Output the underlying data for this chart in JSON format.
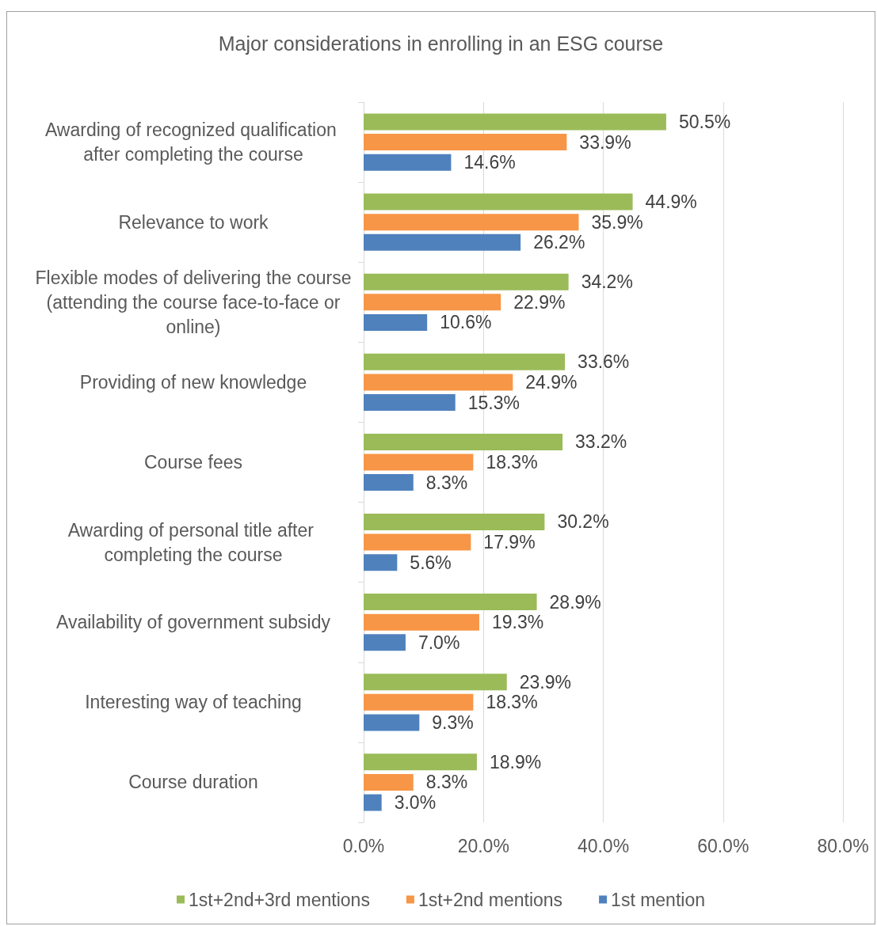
{
  "chart_data": {
    "type": "bar",
    "orientation": "horizontal",
    "title": "Major considerations in enrolling in an ESG course",
    "categories": [
      "Awarding of recognized qualification after completing the course",
      "Relevance to work",
      "Flexible modes of delivering the course (attending the course face-to-face or online)",
      "Providing of new knowledge",
      "Course fees",
      "Awarding of personal title after completing the course",
      "Availability of government subsidy",
      "Interesting way of teaching",
      "Course duration"
    ],
    "series": [
      {
        "name": "1st+2nd+3rd mentions",
        "color": "#9bbb59",
        "values": [
          50.5,
          44.9,
          34.2,
          33.6,
          33.2,
          30.2,
          28.9,
          23.9,
          18.9
        ],
        "value_labels": [
          "50.5%",
          "44.9%",
          "34.2%",
          "33.6%",
          "33.2%",
          "30.2%",
          "28.9%",
          "23.9%",
          "18.9%"
        ]
      },
      {
        "name": "1st+2nd mentions",
        "color": "#f79646",
        "values": [
          33.9,
          35.9,
          22.9,
          24.9,
          18.3,
          17.9,
          19.3,
          18.3,
          8.3
        ],
        "value_labels": [
          "33.9%",
          "35.9%",
          "22.9%",
          "24.9%",
          "18.3%",
          "17.9%",
          "19.3%",
          "18.3%",
          "8.3%"
        ]
      },
      {
        "name": "1st mention",
        "color": "#4f81bd",
        "values": [
          14.6,
          26.2,
          10.6,
          15.3,
          8.3,
          5.6,
          7.0,
          9.3,
          3.0
        ],
        "value_labels": [
          "14.6%",
          "26.2%",
          "10.6%",
          "15.3%",
          "8.3%",
          "5.6%",
          "7.0%",
          "9.3%",
          "3.0%"
        ]
      }
    ],
    "xlim": [
      0,
      80
    ],
    "xticks": [
      {
        "value": 0,
        "label": "0.0%"
      },
      {
        "value": 20,
        "label": "20.0%"
      },
      {
        "value": 40,
        "label": "40.0%"
      },
      {
        "value": 60,
        "label": "60.0%"
      },
      {
        "value": 80,
        "label": "80.0%"
      }
    ],
    "grid": "x",
    "legend": "bottom"
  }
}
